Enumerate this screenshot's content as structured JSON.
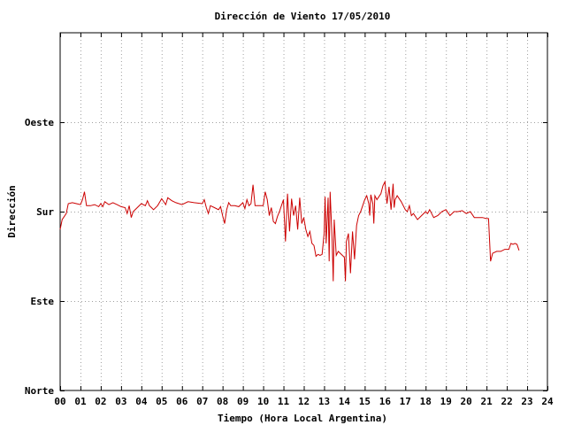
{
  "chart_data": {
    "type": "line",
    "title": "Dirección de Viento 17/05/2010",
    "xlabel": "Tiempo (Hora Local Argentina)",
    "ylabel": "Dirección",
    "xlim": [
      0,
      24
    ],
    "ylim": [
      0,
      360
    ],
    "x_ticks": [
      "00",
      "01",
      "02",
      "03",
      "04",
      "05",
      "06",
      "07",
      "08",
      "09",
      "10",
      "11",
      "12",
      "13",
      "14",
      "15",
      "16",
      "17",
      "18",
      "19",
      "20",
      "21",
      "22",
      "23",
      "24"
    ],
    "y_ticks": [
      {
        "value": 0,
        "label": "Norte"
      },
      {
        "value": 90,
        "label": "Este"
      },
      {
        "value": 180,
        "label": "Sur"
      },
      {
        "value": 270,
        "label": "Oeste"
      }
    ],
    "grid": true,
    "line_color": "#cc0000",
    "series": [
      {
        "values": [
          [
            0.0,
            162
          ],
          [
            0.1,
            172
          ],
          [
            0.3,
            178
          ],
          [
            0.4,
            188
          ],
          [
            0.6,
            189
          ],
          [
            0.8,
            188
          ],
          [
            1.0,
            187
          ],
          [
            1.1,
            192
          ],
          [
            1.2,
            200
          ],
          [
            1.3,
            186
          ],
          [
            1.5,
            186
          ],
          [
            1.7,
            187
          ],
          [
            1.9,
            185
          ],
          [
            2.0,
            188
          ],
          [
            2.1,
            185
          ],
          [
            2.2,
            190
          ],
          [
            2.4,
            187
          ],
          [
            2.6,
            189
          ],
          [
            2.8,
            187
          ],
          [
            3.0,
            185
          ],
          [
            3.2,
            184
          ],
          [
            3.3,
            178
          ],
          [
            3.4,
            186
          ],
          [
            3.5,
            174
          ],
          [
            3.6,
            180
          ],
          [
            3.8,
            184
          ],
          [
            4.0,
            188
          ],
          [
            4.2,
            186
          ],
          [
            4.3,
            191
          ],
          [
            4.4,
            186
          ],
          [
            4.5,
            184
          ],
          [
            4.6,
            182
          ],
          [
            4.8,
            186
          ],
          [
            5.0,
            193
          ],
          [
            5.2,
            187
          ],
          [
            5.3,
            194
          ],
          [
            5.5,
            191
          ],
          [
            5.7,
            189
          ],
          [
            6.0,
            187
          ],
          [
            6.3,
            190
          ],
          [
            6.6,
            189
          ],
          [
            7.0,
            188
          ],
          [
            7.1,
            192
          ],
          [
            7.2,
            184
          ],
          [
            7.3,
            178
          ],
          [
            7.4,
            186
          ],
          [
            7.6,
            184
          ],
          [
            7.8,
            182
          ],
          [
            7.9,
            185
          ],
          [
            8.0,
            176
          ],
          [
            8.1,
            168
          ],
          [
            8.2,
            182
          ],
          [
            8.3,
            189
          ],
          [
            8.4,
            186
          ],
          [
            8.6,
            186
          ],
          [
            8.8,
            185
          ],
          [
            9.0,
            189
          ],
          [
            9.1,
            183
          ],
          [
            9.2,
            192
          ],
          [
            9.3,
            186
          ],
          [
            9.4,
            188
          ],
          [
            9.5,
            207
          ],
          [
            9.6,
            186
          ],
          [
            9.8,
            186
          ],
          [
            10.0,
            186
          ],
          [
            10.1,
            200
          ],
          [
            10.2,
            192
          ],
          [
            10.3,
            176
          ],
          [
            10.4,
            184
          ],
          [
            10.5,
            170
          ],
          [
            10.6,
            168
          ],
          [
            10.7,
            175
          ],
          [
            10.8,
            180
          ],
          [
            10.9,
            186
          ],
          [
            11.0,
            192
          ],
          [
            11.1,
            150
          ],
          [
            11.2,
            198
          ],
          [
            11.3,
            160
          ],
          [
            11.4,
            193
          ],
          [
            11.5,
            176
          ],
          [
            11.6,
            186
          ],
          [
            11.7,
            162
          ],
          [
            11.8,
            194
          ],
          [
            11.9,
            168
          ],
          [
            12.0,
            174
          ],
          [
            12.1,
            162
          ],
          [
            12.2,
            155
          ],
          [
            12.3,
            160
          ],
          [
            12.4,
            148
          ],
          [
            12.5,
            146
          ],
          [
            12.6,
            135
          ],
          [
            12.7,
            137
          ],
          [
            12.8,
            136
          ],
          [
            12.9,
            137
          ],
          [
            13.0,
            158
          ],
          [
            13.05,
            195
          ],
          [
            13.1,
            148
          ],
          [
            13.2,
            194
          ],
          [
            13.25,
            130
          ],
          [
            13.3,
            200
          ],
          [
            13.4,
            150
          ],
          [
            13.45,
            110
          ],
          [
            13.5,
            172
          ],
          [
            13.6,
            136
          ],
          [
            13.7,
            140
          ],
          [
            13.8,
            138
          ],
          [
            13.9,
            136
          ],
          [
            14.0,
            134
          ],
          [
            14.05,
            110
          ],
          [
            14.1,
            150
          ],
          [
            14.2,
            158
          ],
          [
            14.3,
            118
          ],
          [
            14.4,
            160
          ],
          [
            14.5,
            132
          ],
          [
            14.6,
            166
          ],
          [
            14.7,
            176
          ],
          [
            14.8,
            180
          ],
          [
            14.9,
            186
          ],
          [
            15.0,
            192
          ],
          [
            15.1,
            196
          ],
          [
            15.2,
            188
          ],
          [
            15.25,
            176
          ],
          [
            15.3,
            197
          ],
          [
            15.4,
            188
          ],
          [
            15.45,
            168
          ],
          [
            15.5,
            196
          ],
          [
            15.6,
            192
          ],
          [
            15.7,
            195
          ],
          [
            15.8,
            198
          ],
          [
            15.9,
            206
          ],
          [
            16.0,
            210
          ],
          [
            16.05,
            198
          ],
          [
            16.1,
            188
          ],
          [
            16.2,
            205
          ],
          [
            16.3,
            182
          ],
          [
            16.4,
            208
          ],
          [
            16.45,
            184
          ],
          [
            16.5,
            192
          ],
          [
            16.6,
            196
          ],
          [
            16.8,
            190
          ],
          [
            17.0,
            182
          ],
          [
            17.1,
            180
          ],
          [
            17.2,
            186
          ],
          [
            17.3,
            176
          ],
          [
            17.4,
            178
          ],
          [
            17.6,
            172
          ],
          [
            17.8,
            176
          ],
          [
            18.0,
            180
          ],
          [
            18.1,
            178
          ],
          [
            18.2,
            182
          ],
          [
            18.3,
            178
          ],
          [
            18.4,
            174
          ],
          [
            18.6,
            176
          ],
          [
            18.8,
            180
          ],
          [
            19.0,
            182
          ],
          [
            19.2,
            176
          ],
          [
            19.4,
            180
          ],
          [
            19.6,
            180
          ],
          [
            19.8,
            181
          ],
          [
            20.0,
            178
          ],
          [
            20.2,
            180
          ],
          [
            20.4,
            174
          ],
          [
            20.6,
            174
          ],
          [
            20.8,
            174
          ],
          [
            21.0,
            173
          ],
          [
            21.1,
            173
          ],
          [
            21.2,
            130
          ],
          [
            21.3,
            138
          ],
          [
            21.5,
            140
          ],
          [
            21.7,
            140
          ],
          [
            21.9,
            142
          ],
          [
            22.0,
            142
          ],
          [
            22.1,
            142
          ],
          [
            22.2,
            148
          ],
          [
            22.3,
            147
          ],
          [
            22.4,
            148
          ],
          [
            22.5,
            147
          ],
          [
            22.6,
            141
          ]
        ]
      }
    ]
  }
}
